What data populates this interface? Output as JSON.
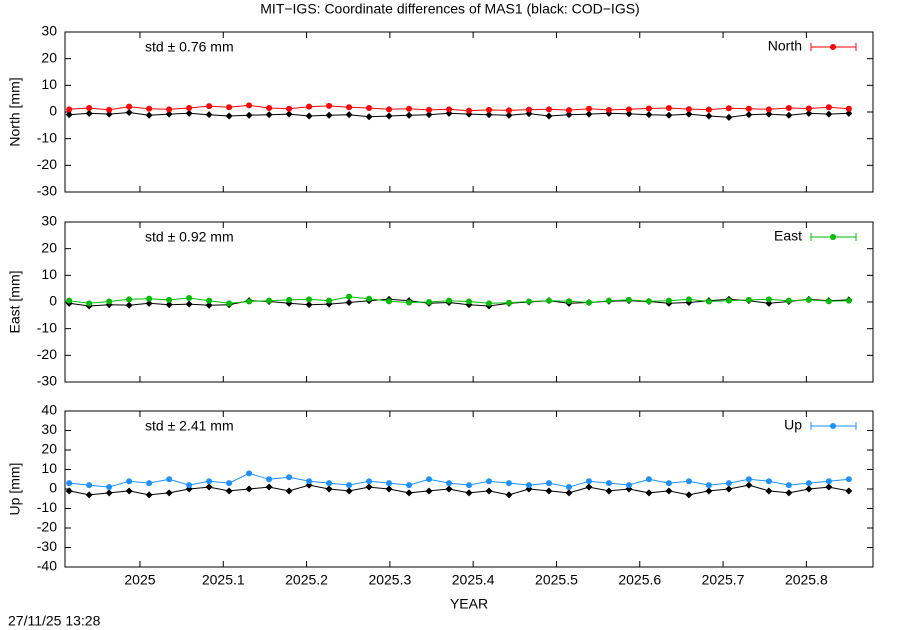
{
  "title": "MIT−IGS: Coordinate differences of MAS1 (black: COD−IGS)",
  "timestamp": "27/11/25 13:28",
  "chart_data": [
    {
      "type": "line",
      "ylabel": "North [mm]",
      "annotation": "std ± 0.76 mm",
      "annotation_color": "#ff0000",
      "xlim": [
        2024.91,
        2025.88
      ],
      "ylim": [
        -30,
        30
      ],
      "yticks": [
        -30,
        -20,
        -10,
        0,
        10,
        20,
        30
      ],
      "x": [
        2024.915,
        2024.939,
        2024.963,
        2024.987,
        2025.011,
        2025.035,
        2025.059,
        2025.083,
        2025.107,
        2025.131,
        2025.155,
        2025.179,
        2025.203,
        2025.227,
        2025.251,
        2025.275,
        2025.299,
        2025.323,
        2025.347,
        2025.371,
        2025.395,
        2025.419,
        2025.443,
        2025.467,
        2025.491,
        2025.515,
        2025.539,
        2025.563,
        2025.587,
        2025.611,
        2025.635,
        2025.659,
        2025.683,
        2025.707,
        2025.731,
        2025.755,
        2025.779,
        2025.803,
        2025.827,
        2025.851
      ],
      "series": [
        {
          "color": "#000000",
          "marker": "diamond",
          "values": [
            -1,
            -0.5,
            -0.8,
            -0.2,
            -1.2,
            -0.8,
            -0.5,
            -1,
            -1.5,
            -1.2,
            -1,
            -0.8,
            -1.5,
            -1.2,
            -1,
            -1.8,
            -1.5,
            -1.2,
            -1,
            -0.5,
            -0.8,
            -1,
            -1.2,
            -0.6,
            -1.5,
            -1,
            -0.8,
            -0.5,
            -0.7,
            -1,
            -1.2,
            -0.8,
            -1.5,
            -2,
            -1,
            -0.8,
            -1.2,
            -0.5,
            -0.8,
            -0.5
          ]
        },
        {
          "name": "North",
          "color": "#ff0000",
          "marker": "circle",
          "values": [
            1,
            1.5,
            0.8,
            2,
            1.2,
            1,
            1.5,
            2.2,
            1.8,
            2.5,
            1.5,
            1.2,
            2,
            2.3,
            1.8,
            1.5,
            1,
            1.2,
            0.8,
            1,
            0.5,
            0.8,
            0.6,
            0.9,
            1,
            0.7,
            1.2,
            0.8,
            1,
            1.3,
            1.5,
            1.1,
            0.9,
            1.4,
            1.2,
            1,
            1.5,
            1.3,
            1.8,
            1.2
          ]
        }
      ]
    },
    {
      "type": "line",
      "ylabel": "East [mm]",
      "annotation": "std ± 0.92 mm",
      "annotation_color": "#00bb00",
      "xlim": [
        2024.91,
        2025.88
      ],
      "ylim": [
        -30,
        30
      ],
      "yticks": [
        -30,
        -20,
        -10,
        0,
        10,
        20,
        30
      ],
      "x": [
        2024.915,
        2024.939,
        2024.963,
        2024.987,
        2025.011,
        2025.035,
        2025.059,
        2025.083,
        2025.107,
        2025.131,
        2025.155,
        2025.179,
        2025.203,
        2025.227,
        2025.251,
        2025.275,
        2025.299,
        2025.323,
        2025.347,
        2025.371,
        2025.395,
        2025.419,
        2025.443,
        2025.467,
        2025.491,
        2025.515,
        2025.539,
        2025.563,
        2025.587,
        2025.611,
        2025.635,
        2025.659,
        2025.683,
        2025.707,
        2025.731,
        2025.755,
        2025.779,
        2025.803,
        2025.827,
        2025.851
      ],
      "series": [
        {
          "color": "#000000",
          "marker": "diamond",
          "values": [
            -0.5,
            -1.5,
            -1,
            -1.2,
            -0.5,
            -1,
            -0.8,
            -1.2,
            -1,
            0.5,
            0.2,
            -0.5,
            -1,
            -0.8,
            -0.2,
            0.5,
            1,
            0.5,
            -0.5,
            -0.2,
            -1,
            -1.5,
            -0.5,
            0,
            0.5,
            -0.5,
            -0.2,
            0.3,
            0.5,
            0.2,
            -0.5,
            -0.2,
            0.5,
            1,
            0.5,
            -0.5,
            0.2,
            1,
            0.5,
            0.8
          ]
        },
        {
          "name": "East",
          "color": "#00bb00",
          "marker": "circle",
          "values": [
            0.5,
            -0.5,
            0.2,
            1,
            1.2,
            0.8,
            1.5,
            0.5,
            -0.5,
            0.2,
            0.5,
            0.8,
            1,
            0.5,
            2,
            1.2,
            0.3,
            -0.2,
            0,
            0.5,
            0.2,
            -0.5,
            -0.3,
            0.2,
            0.5,
            0.3,
            -0.2,
            0.5,
            0.8,
            0.3,
            0.5,
            1,
            0.2,
            0.5,
            0.8,
            1,
            0.5,
            0.8,
            0.3,
            0.5
          ]
        }
      ]
    },
    {
      "type": "line",
      "ylabel": "Up [mm]",
      "xlabel": "YEAR",
      "annotation": "std ± 2.41 mm",
      "annotation_color": "#1e90ff",
      "xlim": [
        2024.91,
        2025.88
      ],
      "xticks": [
        2025,
        2025.1,
        2025.2,
        2025.3,
        2025.4,
        2025.5,
        2025.6,
        2025.7,
        2025.8
      ],
      "ylim": [
        -40,
        40
      ],
      "yticks": [
        -40,
        -30,
        -20,
        -10,
        0,
        10,
        20,
        30,
        40
      ],
      "x": [
        2024.915,
        2024.939,
        2024.963,
        2024.987,
        2025.011,
        2025.035,
        2025.059,
        2025.083,
        2025.107,
        2025.131,
        2025.155,
        2025.179,
        2025.203,
        2025.227,
        2025.251,
        2025.275,
        2025.299,
        2025.323,
        2025.347,
        2025.371,
        2025.395,
        2025.419,
        2025.443,
        2025.467,
        2025.491,
        2025.515,
        2025.539,
        2025.563,
        2025.587,
        2025.611,
        2025.635,
        2025.659,
        2025.683,
        2025.707,
        2025.731,
        2025.755,
        2025.779,
        2025.803,
        2025.827,
        2025.851
      ],
      "series": [
        {
          "color": "#000000",
          "marker": "diamond",
          "values": [
            -1,
            -3,
            -2,
            -1,
            -3,
            -2,
            0,
            1,
            -1,
            0,
            1,
            -1,
            2,
            0,
            -1,
            1,
            0,
            -2,
            -1,
            0,
            -2,
            -1,
            -3,
            0,
            -1,
            -2,
            1,
            -1,
            0,
            -2,
            -1,
            -3,
            -1,
            0,
            2,
            -1,
            -2,
            0,
            1,
            -1
          ]
        },
        {
          "name": "Up",
          "color": "#1e90ff",
          "marker": "circle",
          "values": [
            3,
            2,
            1,
            4,
            3,
            5,
            2,
            4,
            3,
            8,
            5,
            6,
            4,
            3,
            2,
            4,
            3,
            2,
            5,
            3,
            2,
            4,
            3,
            2,
            3,
            1,
            4,
            3,
            2,
            5,
            3,
            4,
            2,
            3,
            5,
            4,
            2,
            3,
            4,
            5
          ]
        }
      ]
    }
  ]
}
